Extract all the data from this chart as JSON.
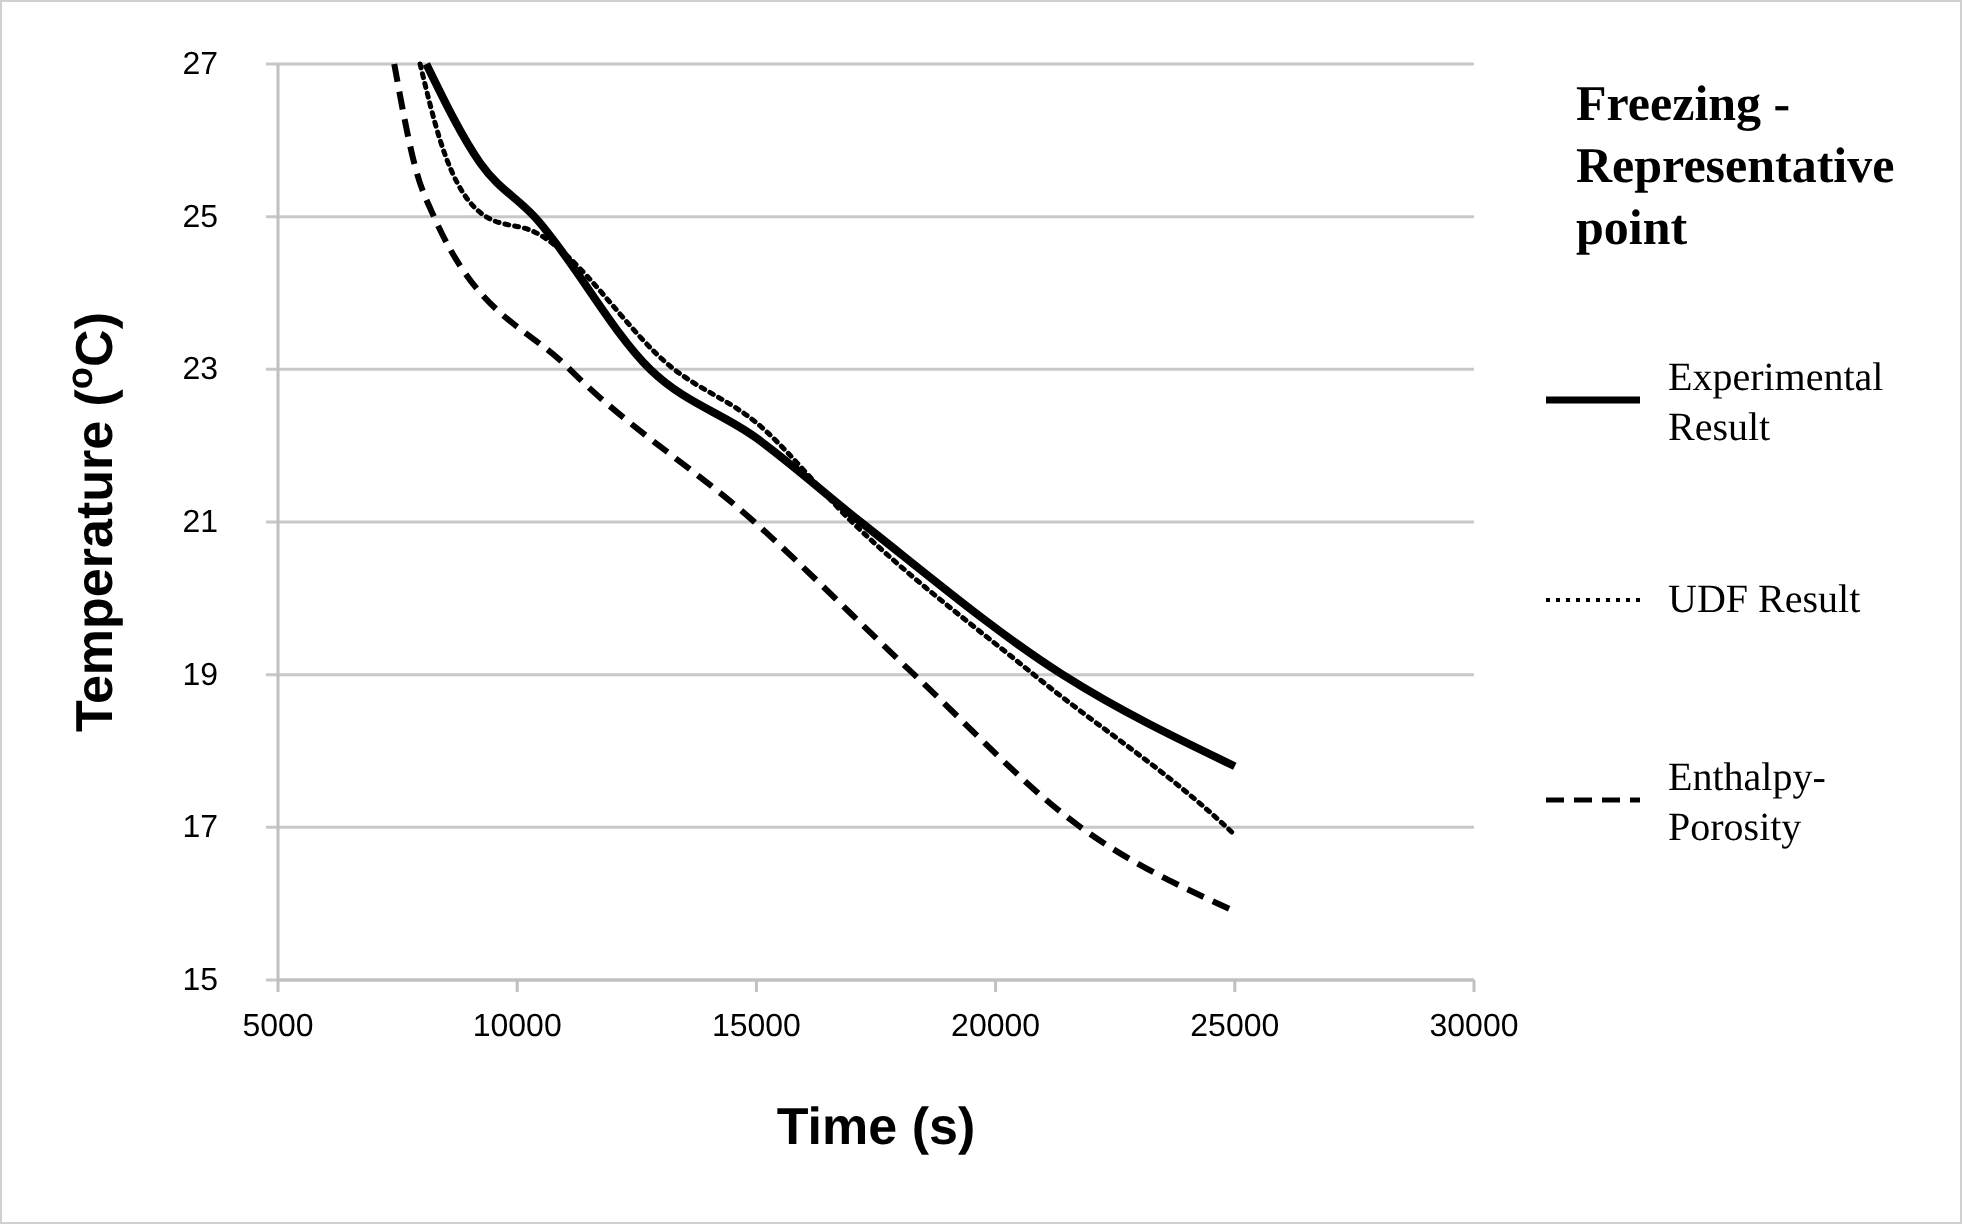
{
  "chart_data": {
    "type": "line",
    "title": "Freezing - Representative point",
    "xlabel": "Time (s)",
    "ylabel": "Temperature ($^{o}$C)",
    "xlim": [
      5000,
      30000
    ],
    "xticks": [
      5000,
      10000,
      15000,
      20000,
      25000,
      30000
    ],
    "ylim": [
      15,
      27
    ],
    "yticks": [
      15,
      17,
      19,
      21,
      23,
      25,
      27
    ],
    "grid": "y",
    "legend": "right",
    "series": [
      {
        "name": "Experimental Result",
        "color": "#000000",
        "line_style": "solid",
        "x": [
          8100,
          9230,
          10360,
          12780,
          15000,
          17180,
          21400,
          25000
        ],
        "values": [
          27,
          25.7,
          25,
          23,
          22.1,
          21,
          19,
          17.8
        ]
      },
      {
        "name": "UDF Result",
        "color": "#000000",
        "line_style": "dotted",
        "x": [
          7970,
          8390,
          9350,
          10360,
          13280,
          15000,
          17000,
          20800,
          24830,
          25000
        ],
        "values": [
          27,
          26,
          25,
          24.8,
          23,
          22.3,
          21,
          19,
          17,
          16.9
        ]
      },
      {
        "name": "Enthalpy-Porosity",
        "color": "#000000",
        "line_style": "dashed",
        "x": [
          7430,
          7890,
          8260,
          11100,
          14960,
          18300,
          21780,
          25000
        ],
        "values": [
          27,
          25.6,
          25,
          23,
          21,
          19,
          17,
          15.9
        ]
      }
    ]
  }
}
